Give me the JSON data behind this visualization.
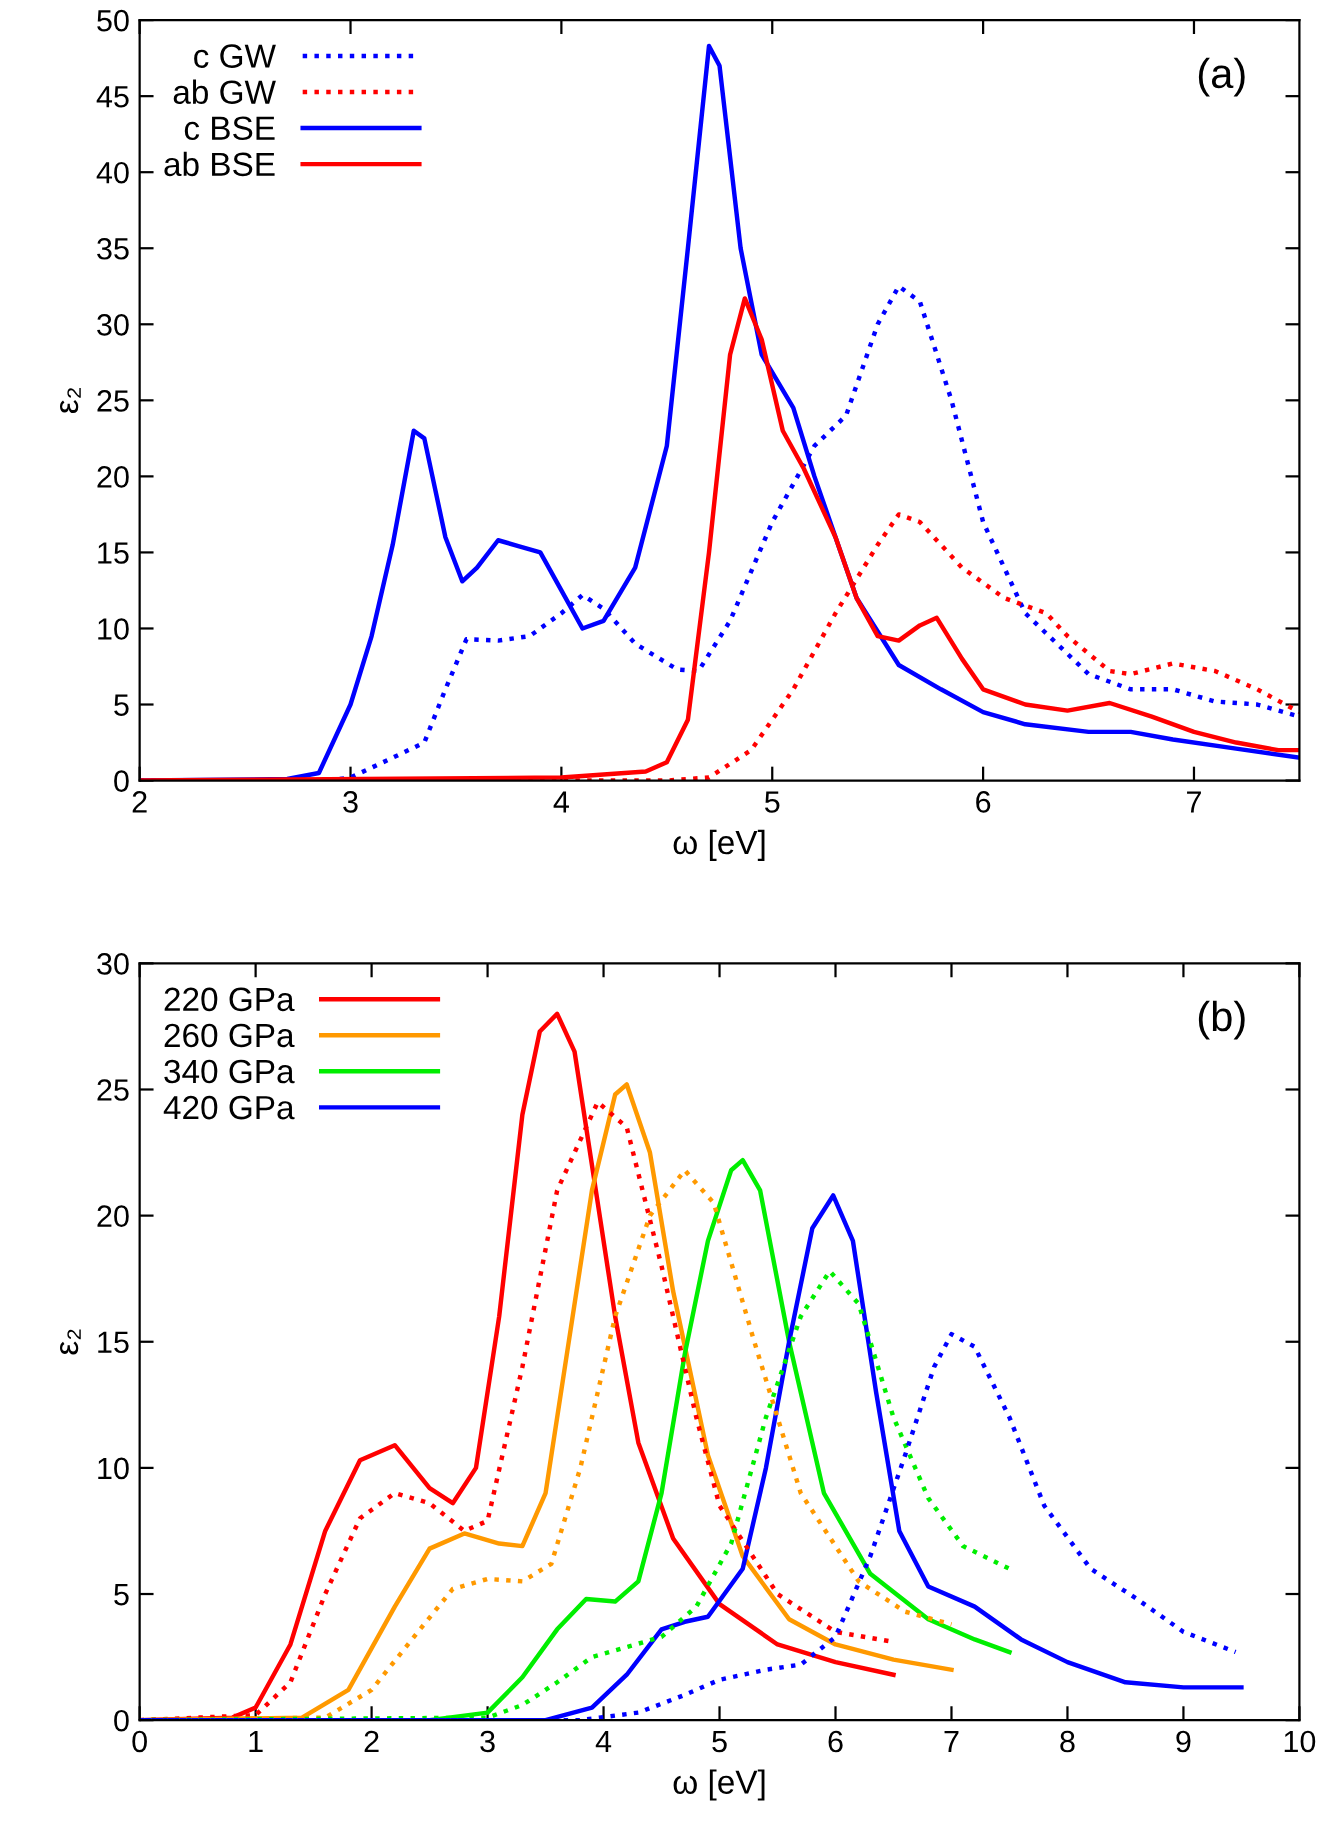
{
  "chart_data": [
    {
      "type": "line",
      "xlabel": "ω [eV]",
      "ylabel": "ε₂",
      "annotations": [
        "(a)"
      ],
      "xlim": [
        2,
        7.5
      ],
      "ylim": [
        0,
        50
      ],
      "xticks": [
        2,
        3,
        4,
        5,
        6,
        7
      ],
      "yticks": [
        0,
        5,
        10,
        15,
        20,
        25,
        30,
        35,
        40,
        45,
        50
      ],
      "legend": "top left",
      "grid": false,
      "marker": "none",
      "series": [
        {
          "name": "c GW",
          "color": "#0000ff",
          "line_style": "dotted",
          "x": [
            2,
            2.9,
            3.0,
            3.2,
            3.35,
            3.45,
            3.55,
            3.7,
            3.85,
            4.0,
            4.1,
            4.2,
            4.35,
            4.55,
            4.65,
            4.8,
            5.0,
            5.2,
            5.35,
            5.5,
            5.6,
            5.7,
            5.85,
            6.0,
            6.2,
            6.5,
            6.7,
            6.9,
            7.1,
            7.3,
            7.5
          ],
          "values": [
            0,
            0,
            0.2,
            1.5,
            2.5,
            6,
            9.3,
            9.2,
            9.5,
            11,
            12.2,
            11.3,
            9,
            7.3,
            7.2,
            10.5,
            17,
            22,
            24,
            30,
            32.5,
            31.5,
            25,
            17,
            11,
            7,
            6,
            6,
            5.2,
            5,
            4.2
          ]
        },
        {
          "name": "ab GW",
          "color": "#ff0000",
          "line_style": "dotted",
          "x": [
            2,
            4.5,
            4.7,
            4.9,
            5.1,
            5.3,
            5.5,
            5.6,
            5.7,
            5.9,
            6.1,
            6.3,
            6.4,
            6.6,
            6.7,
            6.9,
            7.1,
            7.3,
            7.5
          ],
          "values": [
            0,
            0,
            0.2,
            2,
            6,
            11,
            15.5,
            17.5,
            17,
            14,
            12,
            11,
            9.5,
            7.2,
            7,
            7.7,
            7.2,
            6,
            4.5
          ]
        },
        {
          "name": "c BSE",
          "color": "#0000ff",
          "line_style": "solid",
          "x": [
            2,
            2.7,
            2.85,
            3.0,
            3.1,
            3.2,
            3.3,
            3.35,
            3.45,
            3.53,
            3.6,
            3.7,
            3.8,
            3.9,
            4.0,
            4.1,
            4.2,
            4.35,
            4.5,
            4.6,
            4.7,
            4.75,
            4.85,
            4.95,
            5.1,
            5.2,
            5.4,
            5.6,
            5.8,
            6.0,
            6.2,
            6.5,
            6.7,
            6.9,
            7.2,
            7.5
          ],
          "values": [
            0,
            0.1,
            0.5,
            5,
            9.5,
            15.5,
            23,
            22.5,
            16,
            13.1,
            14,
            15.8,
            15.4,
            15,
            12.5,
            10,
            10.5,
            14,
            22,
            35,
            48.3,
            47,
            35,
            28,
            24.5,
            20,
            12,
            7.6,
            6,
            4.5,
            3.7,
            3.2,
            3.2,
            2.7,
            2.1,
            1.5
          ]
        },
        {
          "name": "ab BSE",
          "color": "#ff0000",
          "line_style": "solid",
          "x": [
            2,
            4.0,
            4.4,
            4.5,
            4.6,
            4.7,
            4.8,
            4.87,
            4.95,
            5.05,
            5.15,
            5.3,
            5.4,
            5.5,
            5.6,
            5.7,
            5.78,
            5.9,
            6.0,
            6.2,
            6.4,
            6.6,
            6.8,
            7.0,
            7.2,
            7.4,
            7.5
          ],
          "values": [
            0,
            0.2,
            0.6,
            1.2,
            4,
            15,
            28,
            31.7,
            29,
            23,
            20.5,
            16,
            12,
            9.5,
            9.2,
            10.2,
            10.7,
            8,
            6,
            5,
            4.6,
            5.1,
            4.2,
            3.2,
            2.5,
            2,
            2
          ]
        }
      ]
    },
    {
      "type": "line",
      "xlabel": "ω [eV]",
      "ylabel": "ε₂",
      "annotations": [
        "(b)"
      ],
      "xlim": [
        0,
        10
      ],
      "ylim": [
        0,
        30
      ],
      "xticks": [
        0,
        1,
        2,
        3,
        4,
        5,
        6,
        7,
        8,
        9,
        10
      ],
      "yticks": [
        0,
        5,
        10,
        15,
        20,
        25,
        30
      ],
      "legend": "top left",
      "grid": false,
      "marker": "none",
      "series": [
        {
          "name": "220 GPa",
          "color": "#ff0000",
          "line_style": "solid",
          "x": [
            0,
            0.8,
            1.0,
            1.3,
            1.6,
            1.9,
            2.2,
            2.5,
            2.7,
            2.9,
            3.1,
            3.3,
            3.45,
            3.6,
            3.75,
            3.9,
            4.1,
            4.3,
            4.6,
            5.0,
            5.5,
            6.0,
            6.5
          ],
          "values": [
            0,
            0.1,
            0.5,
            3,
            7.5,
            10.3,
            10.9,
            9.2,
            8.6,
            10,
            16,
            24,
            27.3,
            28,
            26.5,
            22,
            16,
            11,
            7.2,
            4.6,
            3,
            2.3,
            1.8
          ]
        },
        {
          "name": "260 GPa",
          "color": "#ff9900",
          "line_style": "solid",
          "x": [
            0,
            1.4,
            1.8,
            2.2,
            2.5,
            2.8,
            3.1,
            3.3,
            3.5,
            3.7,
            3.9,
            4.1,
            4.2,
            4.4,
            4.6,
            4.9,
            5.2,
            5.6,
            6.0,
            6.5,
            7.0
          ],
          "values": [
            0,
            0.1,
            1.2,
            4.5,
            6.8,
            7.4,
            7,
            6.9,
            9,
            15,
            21,
            24.8,
            25.2,
            22.5,
            17,
            10.5,
            6.5,
            4,
            3,
            2.4,
            2
          ]
        },
        {
          "name": "340 GPa",
          "color": "#00ee00",
          "line_style": "solid",
          "x": [
            0,
            2.5,
            3.0,
            3.3,
            3.6,
            3.85,
            4.1,
            4.3,
            4.5,
            4.7,
            4.9,
            5.1,
            5.2,
            5.35,
            5.6,
            5.9,
            6.3,
            6.8,
            7.2,
            7.5
          ],
          "values": [
            0,
            0,
            0.3,
            1.7,
            3.6,
            4.8,
            4.7,
            5.5,
            9,
            14.5,
            19,
            21.8,
            22.2,
            21,
            15,
            9,
            5.8,
            4,
            3.2,
            2.7
          ]
        },
        {
          "name": "420 GPa",
          "color": "#0000ff",
          "line_style": "solid",
          "x": [
            0,
            3.5,
            3.9,
            4.2,
            4.5,
            4.7,
            4.9,
            5.2,
            5.4,
            5.6,
            5.8,
            5.98,
            6.15,
            6.35,
            6.55,
            6.8,
            7.2,
            7.6,
            8.0,
            8.5,
            9.0,
            9.5
          ],
          "values": [
            0,
            0,
            0.5,
            1.8,
            3.6,
            3.9,
            4.1,
            6,
            10,
            15,
            19.5,
            20.8,
            19,
            13,
            7.5,
            5.3,
            4.5,
            3.2,
            2.3,
            1.5,
            1.3,
            1.3
          ]
        },
        {
          "color": "#ff0000",
          "line_style": "dotted",
          "x": [
            0,
            1.0,
            1.3,
            1.6,
            1.9,
            2.2,
            2.5,
            2.8,
            3.0,
            3.3,
            3.6,
            3.95,
            4.2,
            4.5,
            4.8,
            5.0,
            5.5,
            6.0,
            6.5
          ],
          "values": [
            0,
            0.2,
            1.5,
            5,
            8,
            9,
            8.6,
            7.5,
            7.9,
            14,
            21,
            24.5,
            23.5,
            18,
            12,
            8.5,
            5,
            3.5,
            3.1
          ]
        },
        {
          "color": "#ff9900",
          "line_style": "dotted",
          "x": [
            0,
            1.6,
            2.0,
            2.4,
            2.7,
            3.0,
            3.3,
            3.55,
            3.8,
            4.1,
            4.4,
            4.7,
            4.95,
            5.3,
            5.7,
            6.2,
            6.6,
            7.0
          ],
          "values": [
            0,
            0.1,
            1.2,
            3.5,
            5.2,
            5.6,
            5.5,
            6.2,
            10,
            16,
            20,
            21.8,
            20.5,
            15,
            9,
            5.5,
            4.3,
            3.8
          ]
        },
        {
          "color": "#00ee00",
          "line_style": "dotted",
          "x": [
            0,
            3.0,
            3.3,
            3.6,
            3.9,
            4.2,
            4.5,
            4.8,
            5.1,
            5.4,
            5.7,
            5.95,
            6.2,
            6.5,
            6.8,
            7.1,
            7.5
          ],
          "values": [
            0,
            0.1,
            0.6,
            1.5,
            2.5,
            2.9,
            3.3,
            4.5,
            7,
            12,
            16,
            17.8,
            16.5,
            12,
            8.8,
            6.9,
            6
          ]
        },
        {
          "color": "#0000ff",
          "line_style": "dotted",
          "x": [
            0,
            3.8,
            4.3,
            4.7,
            5.0,
            5.4,
            5.7,
            6.0,
            6.3,
            6.6,
            6.85,
            7.0,
            7.2,
            7.5,
            7.8,
            8.2,
            8.6,
            9.0,
            9.45
          ],
          "values": [
            0,
            0,
            0.3,
            1,
            1.6,
            2,
            2.2,
            3.3,
            6.5,
            10.5,
            14,
            15.3,
            14.8,
            12,
            8.5,
            6,
            4.8,
            3.5,
            2.7
          ]
        }
      ]
    }
  ]
}
